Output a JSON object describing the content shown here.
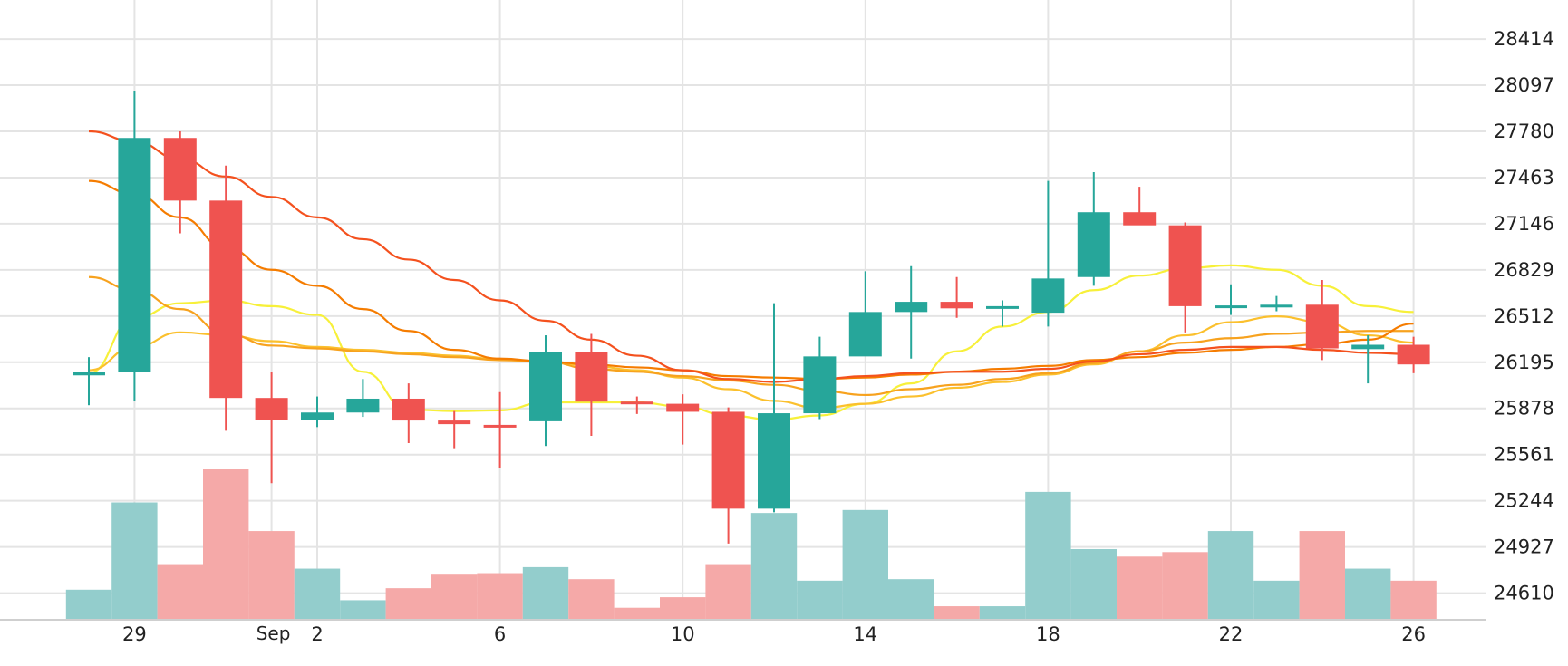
{
  "chart_data": {
    "type": "candlestick",
    "y_axis": {
      "ticks": [
        28414,
        28097,
        27780,
        27463,
        27146,
        26829,
        26512,
        26195,
        25878,
        25561,
        25244,
        24927,
        24610
      ],
      "range": [
        24427,
        28682
      ],
      "position": "right"
    },
    "x_axis": {
      "ticks": [
        {
          "i": 1,
          "label": "29"
        },
        {
          "i": 5,
          "label": "2",
          "month": "Sep"
        },
        {
          "i": 9,
          "label": "6"
        },
        {
          "i": 13,
          "label": "10"
        },
        {
          "i": 17,
          "label": "14"
        },
        {
          "i": 21,
          "label": "18"
        },
        {
          "i": 25,
          "label": "22"
        },
        {
          "i": 29,
          "label": "26"
        }
      ]
    },
    "grid": true,
    "candles": [
      {
        "o": 26105,
        "h": 26230,
        "l": 25900,
        "c": 26130
      },
      {
        "o": 26130,
        "h": 28060,
        "l": 25930,
        "c": 27735
      },
      {
        "o": 27735,
        "h": 27780,
        "l": 27080,
        "c": 27305
      },
      {
        "o": 27305,
        "h": 27545,
        "l": 25725,
        "c": 25950
      },
      {
        "o": 25950,
        "h": 26130,
        "l": 25365,
        "c": 25800
      },
      {
        "o": 25800,
        "h": 25960,
        "l": 25750,
        "c": 25850
      },
      {
        "o": 25850,
        "h": 26080,
        "l": 25820,
        "c": 25945
      },
      {
        "o": 25945,
        "h": 26050,
        "l": 25640,
        "c": 25795
      },
      {
        "o": 25795,
        "h": 25860,
        "l": 25605,
        "c": 25770
      },
      {
        "o": 25765,
        "h": 25990,
        "l": 25470,
        "c": 25760
      },
      {
        "o": 25790,
        "h": 26380,
        "l": 25620,
        "c": 26265
      },
      {
        "o": 26265,
        "h": 26390,
        "l": 25690,
        "c": 25925
      },
      {
        "o": 25925,
        "h": 25960,
        "l": 25840,
        "c": 25910
      },
      {
        "o": 25910,
        "h": 25975,
        "l": 25630,
        "c": 25855
      },
      {
        "o": 25855,
        "h": 25885,
        "l": 24950,
        "c": 25190
      },
      {
        "o": 25190,
        "h": 26600,
        "l": 25165,
        "c": 25845
      },
      {
        "o": 25845,
        "h": 26370,
        "l": 25805,
        "c": 26235
      },
      {
        "o": 26235,
        "h": 26820,
        "l": 26240,
        "c": 26540
      },
      {
        "o": 26540,
        "h": 26855,
        "l": 26220,
        "c": 26610
      },
      {
        "o": 26610,
        "h": 26780,
        "l": 26500,
        "c": 26565
      },
      {
        "o": 26565,
        "h": 26620,
        "l": 26440,
        "c": 26580
      },
      {
        "o": 26535,
        "h": 27440,
        "l": 26440,
        "c": 26770
      },
      {
        "o": 26780,
        "h": 27500,
        "l": 26720,
        "c": 27225
      },
      {
        "o": 27225,
        "h": 27400,
        "l": 27145,
        "c": 27135
      },
      {
        "o": 27135,
        "h": 27155,
        "l": 26400,
        "c": 26580
      },
      {
        "o": 26580,
        "h": 26730,
        "l": 26520,
        "c": 26585
      },
      {
        "o": 26585,
        "h": 26650,
        "l": 26545,
        "c": 26590
      },
      {
        "o": 26590,
        "h": 26760,
        "l": 26210,
        "c": 26290
      },
      {
        "o": 26285,
        "h": 26380,
        "l": 26050,
        "c": 26315
      },
      {
        "o": 26315,
        "h": 26370,
        "l": 26120,
        "c": 26180
      }
    ],
    "volume": [
      20,
      78,
      37,
      100,
      59,
      34,
      13,
      21,
      30,
      31,
      35,
      27,
      8,
      15,
      37,
      71,
      26,
      73,
      27,
      9,
      9,
      85,
      47,
      42,
      45,
      59,
      26,
      59,
      34,
      26
    ],
    "moving_averages": [
      {
        "color": "#f7f03a",
        "values": [
          26120,
          26500,
          26600,
          26620,
          26580,
          26520,
          26130,
          25870,
          25860,
          25865,
          25920,
          25920,
          25920,
          25890,
          25830,
          25800,
          25830,
          25910,
          26050,
          26270,
          26440,
          26540,
          26690,
          26790,
          26840,
          26860,
          26830,
          26720,
          26580,
          26540
        ]
      },
      {
        "color": "#fbc02d",
        "values": [
          26140,
          26300,
          26400,
          26380,
          26340,
          26300,
          26280,
          26260,
          26240,
          26215,
          26200,
          26170,
          26140,
          26090,
          26010,
          25930,
          25880,
          25910,
          25960,
          26020,
          26060,
          26110,
          26180,
          26270,
          26380,
          26470,
          26510,
          26470,
          26380,
          26330
        ]
      },
      {
        "color": "#f7a21e",
        "values": [
          26780,
          26690,
          26560,
          26390,
          26310,
          26290,
          26270,
          26250,
          26230,
          26210,
          26200,
          26150,
          26130,
          26100,
          26070,
          26040,
          26000,
          25970,
          26010,
          26040,
          26080,
          26120,
          26190,
          26270,
          26330,
          26360,
          26390,
          26400,
          26410,
          26410
        ]
      },
      {
        "color": "#f57c00",
        "values": [
          27440,
          27350,
          27190,
          26980,
          26830,
          26720,
          26560,
          26410,
          26280,
          26220,
          26200,
          26180,
          26160,
          26140,
          26100,
          26090,
          26080,
          26090,
          26110,
          26130,
          26150,
          26170,
          26210,
          26230,
          26260,
          26280,
          26300,
          26320,
          26350,
          26460
        ]
      },
      {
        "color": "#f4511e",
        "values": [
          27780,
          27710,
          27590,
          27470,
          27330,
          27190,
          27040,
          26900,
          26760,
          26620,
          26480,
          26350,
          26240,
          26140,
          26080,
          26060,
          26080,
          26100,
          26120,
          26130,
          26130,
          26150,
          26200,
          26250,
          26280,
          26300,
          26300,
          26280,
          26260,
          26250
        ]
      }
    ],
    "colors": {
      "up": "#26a69a",
      "down": "#ef5350",
      "up_volume": "#93cdcc",
      "down_volume": "#f5a9a8",
      "grid": "#e4e4e4",
      "text": "#222222"
    }
  }
}
